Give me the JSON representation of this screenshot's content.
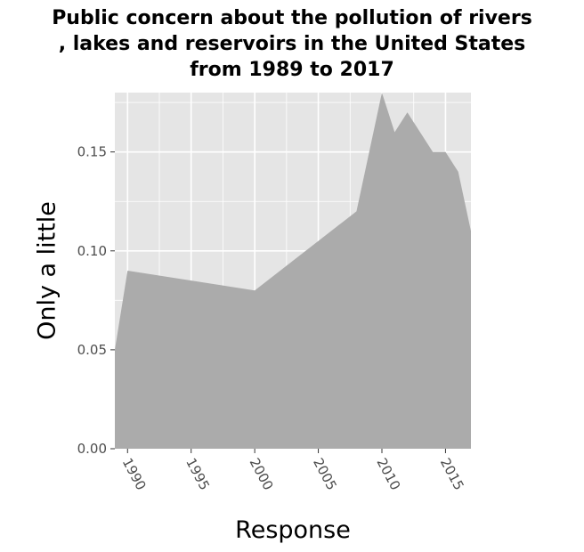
{
  "chart_data": {
    "type": "area",
    "title_lines": [
      "Public concern about the pollution of rivers",
      ", lakes and reservoirs in the United States",
      "from 1989 to 2017"
    ],
    "xlabel": "Response",
    "ylabel": "Only a little",
    "xlim": [
      1989,
      2017
    ],
    "ylim": [
      0,
      0.18
    ],
    "x_ticks": [
      1990,
      1995,
      2000,
      2005,
      2010,
      2015
    ],
    "y_ticks": [
      "0.00",
      "0.05",
      "0.10",
      "0.15"
    ],
    "grid": true,
    "series": [
      {
        "x": [
          1989,
          1990,
          2000,
          2008,
          2010,
          2011,
          2012,
          2014,
          2015,
          2016,
          2017
        ],
        "values": [
          0.05,
          0.09,
          0.08,
          0.12,
          0.18,
          0.16,
          0.17,
          0.15,
          0.15,
          0.14,
          0.11
        ]
      }
    ],
    "colors": {
      "area": "#ababab",
      "panel": "#e5e5e5",
      "grid": "#ffffff"
    }
  }
}
